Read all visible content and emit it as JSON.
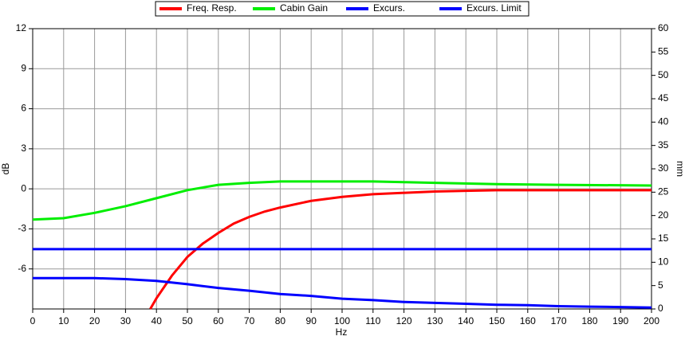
{
  "chart_data": {
    "type": "line",
    "grid": true,
    "xlabel": "Hz",
    "ylabel": "dB",
    "y2label": "mm",
    "xlim": [
      0,
      200
    ],
    "xticks": [
      0,
      10,
      20,
      30,
      40,
      50,
      60,
      70,
      80,
      90,
      100,
      110,
      120,
      130,
      140,
      150,
      160,
      170,
      180,
      190,
      200
    ],
    "ylim": [
      -9,
      12
    ],
    "yticks": [
      -6,
      -3,
      0,
      3,
      6,
      9,
      12
    ],
    "y2lim": [
      0,
      60
    ],
    "y2ticks": [
      0,
      5,
      10,
      15,
      20,
      25,
      30,
      35,
      40,
      45,
      50,
      55,
      60
    ],
    "series": [
      {
        "name": "Freq. Resp.",
        "color": "#ff0000",
        "x": [
          38,
          40,
          45,
          50,
          55,
          60,
          65,
          70,
          75,
          80,
          90,
          100,
          110,
          120,
          130,
          140,
          150,
          200
        ],
        "values": [
          -9,
          -8.2,
          -6.5,
          -5.1,
          -4.1,
          -3.3,
          -2.6,
          -2.1,
          -1.7,
          -1.4,
          -0.9,
          -0.6,
          -0.4,
          -0.3,
          -0.2,
          -0.15,
          -0.1,
          -0.1
        ]
      },
      {
        "name": "Cabin Gain",
        "color": "#00ee00",
        "x": [
          0,
          10,
          20,
          30,
          40,
          50,
          60,
          70,
          80,
          100,
          110,
          120,
          130,
          150,
          170,
          200
        ],
        "values": [
          -2.3,
          -2.2,
          -1.8,
          -1.3,
          -0.7,
          -0.1,
          0.3,
          0.45,
          0.55,
          0.55,
          0.55,
          0.5,
          0.45,
          0.35,
          0.3,
          0.25
        ]
      },
      {
        "name": "Excurs.",
        "color": "#0000ff",
        "axis": "y2",
        "x": [
          0,
          10,
          20,
          30,
          40,
          50,
          60,
          70,
          80,
          90,
          100,
          110,
          120,
          130,
          140,
          150,
          160,
          170,
          180,
          190,
          200
        ],
        "values": [
          6.6,
          6.6,
          6.6,
          6.4,
          6.0,
          5.3,
          4.5,
          3.9,
          3.2,
          2.8,
          2.2,
          1.9,
          1.5,
          1.3,
          1.1,
          0.9,
          0.8,
          0.6,
          0.5,
          0.4,
          0.3
        ]
      },
      {
        "name": "Excurs. Limit",
        "color": "#0000ff",
        "axis": "y2",
        "x": [
          0,
          200
        ],
        "values": [
          12.8,
          12.8
        ]
      }
    ]
  }
}
